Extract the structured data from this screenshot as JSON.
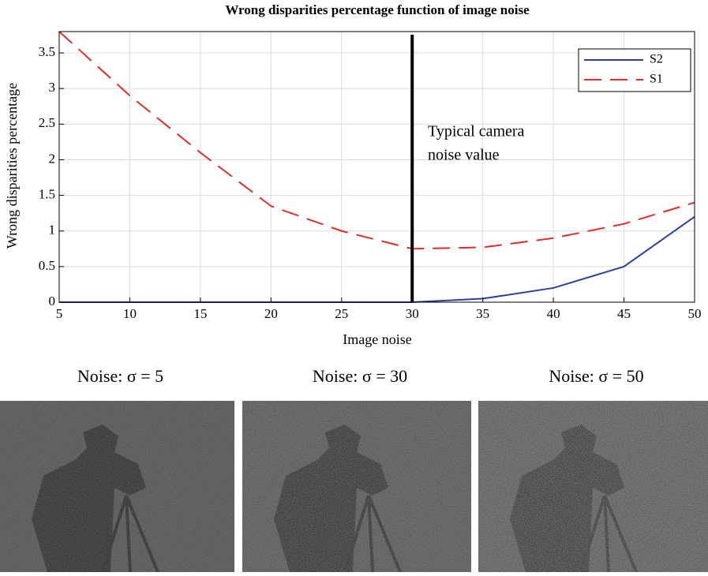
{
  "chart_data": {
    "type": "line",
    "title": "Wrong disparities percentage function of image noise",
    "xlabel": "Image noise",
    "ylabel": "Wrong disparities percentage",
    "x": [
      5,
      10,
      15,
      20,
      25,
      30,
      35,
      40,
      45,
      50
    ],
    "series": [
      {
        "name": "S2",
        "color": "#2d3fa0",
        "dash": "solid",
        "values": [
          0,
          0,
          0,
          0,
          0,
          0,
          0.05,
          0.2,
          0.5,
          1.2
        ]
      },
      {
        "name": "S1",
        "color": "#e0302a",
        "dash": "dashed",
        "values": [
          3.8,
          2.9,
          2.1,
          1.35,
          1.0,
          0.75,
          0.77,
          0.9,
          1.1,
          1.4
        ]
      }
    ],
    "xlim": [
      5,
      50
    ],
    "xticks": [
      5,
      10,
      15,
      20,
      25,
      30,
      35,
      40,
      45,
      50
    ],
    "ylim": [
      0,
      3.8
    ],
    "yticks": [
      0,
      0.5,
      1,
      1.5,
      2,
      2.5,
      3,
      3.5
    ],
    "grid": true,
    "legend": "upper right",
    "vline": 30,
    "annotation": [
      "Typical camera",
      "noise value"
    ]
  },
  "images": [
    "Noise: σ = 5",
    "Noise: σ = 30",
    "Noise: σ = 50"
  ]
}
